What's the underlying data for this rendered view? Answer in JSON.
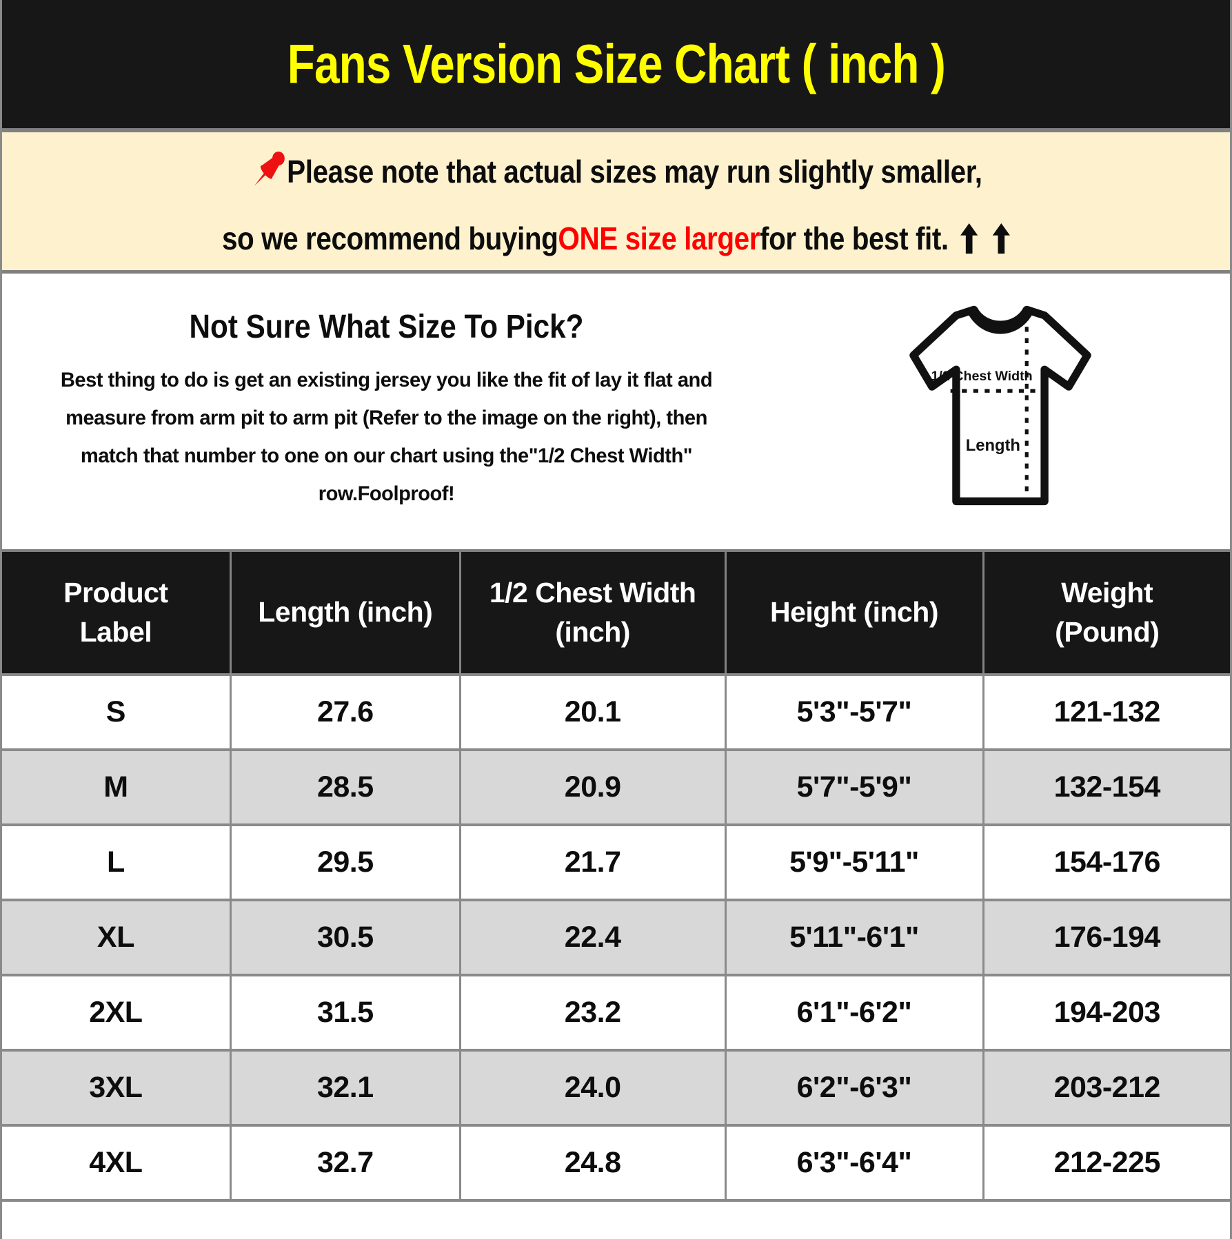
{
  "title": "Fans Version Size Chart ( inch )",
  "note": {
    "pushpin_icon": "red-pushpin",
    "line1": "Please note that actual sizes may run slightly smaller,",
    "line2_prefix": "so we recommend buying ",
    "line2_highlight": "ONE size larger",
    "line2_suffix": " for the best fit.",
    "arrow_icon": "up-arrow",
    "arrow_count": 2
  },
  "guide": {
    "heading": "Not Sure What Size To Pick?",
    "lines": [
      "Best thing to do is get an existing jersey you like the fit of lay it flat and",
      "measure from arm pit to arm pit (Refer to the image on the right), then",
      "match that number to one on our chart using the\"1/2 Chest Width\"",
      "row.Foolproof!"
    ],
    "diagram": {
      "name": "tshirt-measurement-diagram",
      "chest_label": "1/2 Chest Width",
      "length_label": "Length"
    }
  },
  "table": {
    "headers": [
      [
        "Product",
        "Label"
      ],
      [
        "Length (inch)"
      ],
      [
        "1/2 Chest Width",
        "(inch)"
      ],
      [
        "Height (inch)"
      ],
      [
        "Weight",
        "(Pound)"
      ]
    ],
    "col_widths_pct": [
      18.6,
      18.7,
      21.6,
      21.0,
      20.1
    ],
    "rows": [
      [
        "S",
        "27.6",
        "20.1",
        "5'3\"-5'7\"",
        "121-132"
      ],
      [
        "M",
        "28.5",
        "20.9",
        "5'7\"-5'9\"",
        "132-154"
      ],
      [
        "L",
        "29.5",
        "21.7",
        "5'9\"-5'11\"",
        "154-176"
      ],
      [
        "XL",
        "30.5",
        "22.4",
        "5'11\"-6'1\"",
        "176-194"
      ],
      [
        "2XL",
        "31.5",
        "23.2",
        "6'1\"-6'2\"",
        "194-203"
      ],
      [
        "3XL",
        "32.1",
        "24.0",
        "6'2\"-6'3\"",
        "203-212"
      ],
      [
        "4XL",
        "32.7",
        "24.8",
        "6'3\"-6'4\"",
        "212-225"
      ]
    ]
  },
  "colors": {
    "header_bg": "#171717",
    "title_yellow": "#FFFF00",
    "note_bg": "#FDF1CE",
    "highlight_red": "#FF0000",
    "pushpin_red": "#EE1111",
    "row_alt_gray": "#D8D8D8",
    "border_gray": "#808080",
    "text_black": "#0d0d0d"
  }
}
